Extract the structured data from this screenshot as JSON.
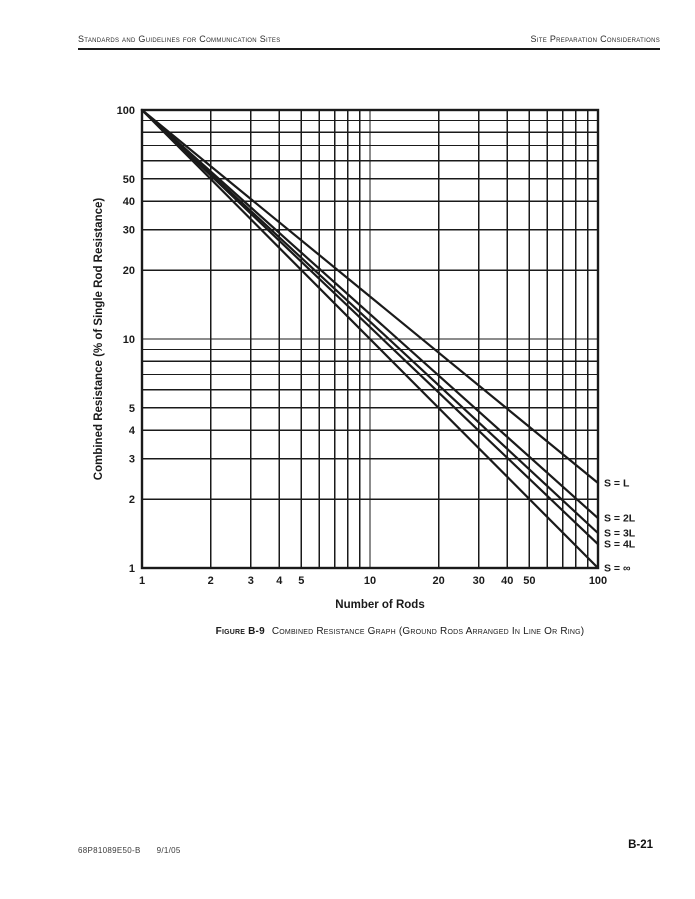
{
  "page": {
    "header": {
      "left": "Standards and Guidelines for Communication Sites",
      "right": "Site Preparation Considerations"
    },
    "figure_caption": {
      "label": "Figure B-9",
      "text": "Combined Resistance Graph (Ground Rods Arranged In Line Or Ring)"
    },
    "footer": {
      "doc_number": "68P81089E50-B",
      "date": "9/1/05",
      "page_number": "B-21"
    }
  },
  "chart_data": {
    "type": "line",
    "title": "",
    "xlabel": "Number of Rods",
    "ylabel": "Combined Resistance (% of Single Rod Resistance)",
    "x_scale": "log",
    "y_scale": "log",
    "xlim": [
      1,
      100
    ],
    "ylim": [
      1,
      100
    ],
    "x_ticks": [
      1,
      2,
      3,
      4,
      5,
      10,
      20,
      30,
      40,
      50,
      100
    ],
    "y_ticks": [
      100,
      50,
      40,
      30,
      20,
      10,
      5,
      4,
      3,
      2,
      1
    ],
    "grid_lines": [
      2,
      3,
      4,
      5,
      6,
      7,
      8,
      9,
      10,
      20,
      30,
      40,
      50,
      60,
      70,
      80,
      90
    ],
    "grid": true,
    "legend_position": "labels at right end of each line",
    "ink_color": "#1a1a1a",
    "series": [
      {
        "name": "S = L",
        "x": [
          1,
          100
        ],
        "y": [
          100,
          2.35
        ]
      },
      {
        "name": "S = 2L",
        "x": [
          1,
          100
        ],
        "y": [
          100,
          1.65
        ]
      },
      {
        "name": "S = 3L",
        "x": [
          1,
          100
        ],
        "y": [
          100,
          1.42
        ]
      },
      {
        "name": "S = 4L",
        "x": [
          1,
          100
        ],
        "y": [
          100,
          1.27
        ]
      },
      {
        "name": "S = ∞",
        "x": [
          1,
          100
        ],
        "y": [
          100,
          1.0
        ]
      }
    ]
  }
}
